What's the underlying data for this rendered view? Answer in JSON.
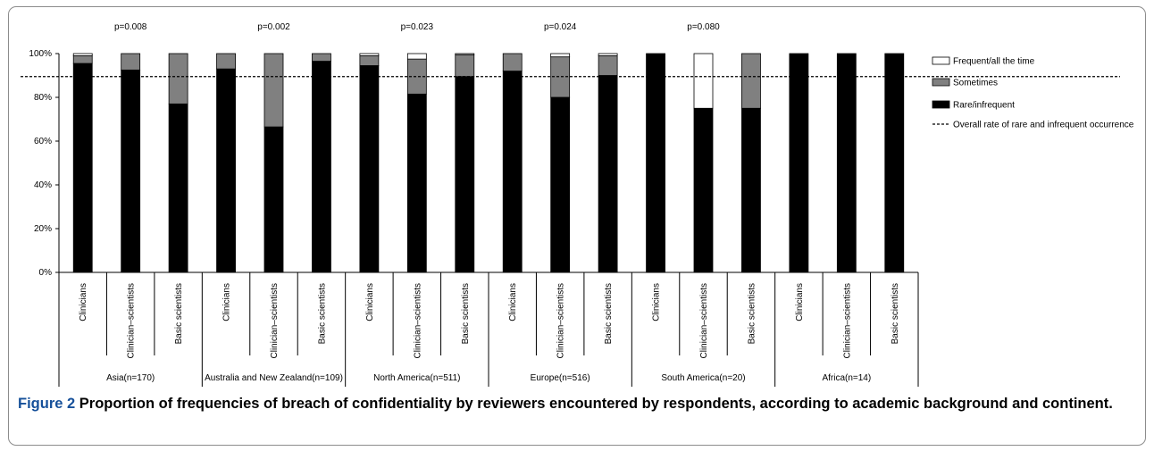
{
  "chart_data": {
    "type": "bar",
    "stacked": true,
    "ylim": [
      0,
      100
    ],
    "yticks": [
      "0%",
      "20%",
      "40%",
      "60%",
      "80%",
      "100%"
    ],
    "reference_line": {
      "value": 89.5,
      "label": "Overall rate of rare and infrequent occurrence"
    },
    "groups": [
      {
        "label": "Asia(n=170)",
        "pvalue": "p=0.008",
        "bars": [
          {
            "category": "Clinicians",
            "rare": 95.5,
            "sometimes": 3.5,
            "frequent": 1.0
          },
          {
            "category": "Clinician–scientists",
            "rare": 92.5,
            "sometimes": 7.5,
            "frequent": 0
          },
          {
            "category": "Basic scientists",
            "rare": 77.0,
            "sometimes": 23.0,
            "frequent": 0
          }
        ]
      },
      {
        "label": "Australia and New Zealand(n=109)",
        "pvalue": "p=0.002",
        "bars": [
          {
            "category": "Clinicians",
            "rare": 93.0,
            "sometimes": 7.0,
            "frequent": 0
          },
          {
            "category": "Clinician–scientists",
            "rare": 66.5,
            "sometimes": 33.5,
            "frequent": 0
          },
          {
            "category": "Basic scientists",
            "rare": 96.5,
            "sometimes": 3.5,
            "frequent": 0
          }
        ]
      },
      {
        "label": "North America(n=511)",
        "pvalue": "p=0.023",
        "bars": [
          {
            "category": "Clinicians",
            "rare": 94.5,
            "sometimes": 4.5,
            "frequent": 1.0
          },
          {
            "category": "Clinician–scientists",
            "rare": 81.5,
            "sometimes": 16.0,
            "frequent": 2.5
          },
          {
            "category": "Basic scientists",
            "rare": 89.5,
            "sometimes": 10.0,
            "frequent": 0.5
          }
        ]
      },
      {
        "label": "Europe(n=516)",
        "pvalue": "p=0.024",
        "bars": [
          {
            "category": "Clinicians",
            "rare": 92.0,
            "sometimes": 8.0,
            "frequent": 0
          },
          {
            "category": "Clinician–scientists",
            "rare": 80.0,
            "sometimes": 18.5,
            "frequent": 1.5
          },
          {
            "category": "Basic scientists",
            "rare": 90.0,
            "sometimes": 9.0,
            "frequent": 1.0
          }
        ]
      },
      {
        "label": "South America(n=20)",
        "pvalue": "p=0.080",
        "bars": [
          {
            "category": "Clinicians",
            "rare": 100,
            "sometimes": 0,
            "frequent": 0
          },
          {
            "category": "Clinician–scientists",
            "rare": 75.0,
            "sometimes": 0,
            "frequent": 25.0
          },
          {
            "category": "Basic scientists",
            "rare": 75.0,
            "sometimes": 25.0,
            "frequent": 0
          }
        ]
      },
      {
        "label": "Africa(n=14)",
        "pvalue": "",
        "bars": [
          {
            "category": "Clinicians",
            "rare": 100,
            "sometimes": 0,
            "frequent": 0
          },
          {
            "category": "Clinician–scientists",
            "rare": 100,
            "sometimes": 0,
            "frequent": 0
          },
          {
            "category": "Basic scientists",
            "rare": 100,
            "sometimes": 0,
            "frequent": 0
          }
        ]
      }
    ],
    "legend": [
      {
        "key": "frequent",
        "label": "Frequent/all the time",
        "color": "#ffffff"
      },
      {
        "key": "sometimes",
        "label": "Sometimes",
        "color": "#808080"
      },
      {
        "key": "rare",
        "label": "Rare/infrequent",
        "color": "#000000"
      },
      {
        "key": "line",
        "label": "Overall rate of rare and infrequent occurrence",
        "color": "#000000"
      }
    ],
    "legend_position": "right"
  },
  "caption": {
    "label": "Figure 2",
    "text": " Proportion of frequencies of breach of confidentiality by reviewers encountered by respondents, according to academic background and continent."
  }
}
